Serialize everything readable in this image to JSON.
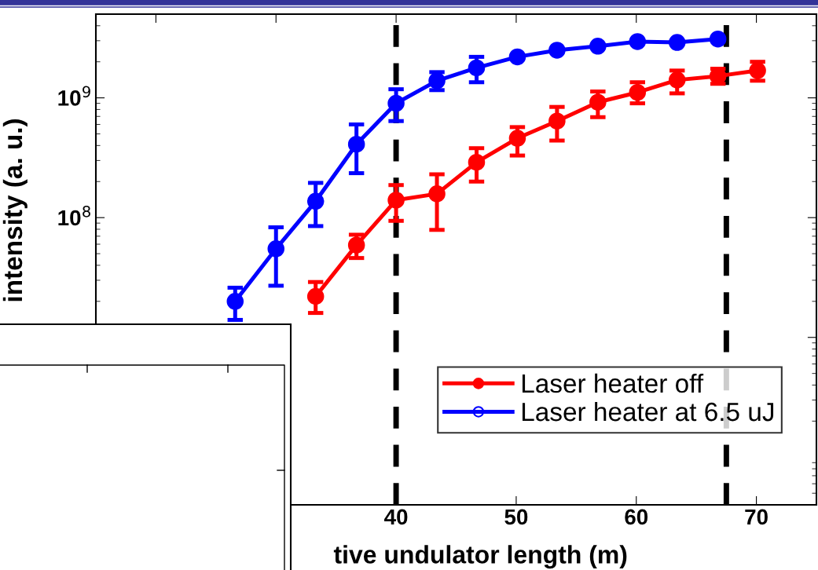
{
  "chart_data": {
    "type": "line",
    "xlabel": "tive undulator length (m)",
    "ylabel": "intensity (a. u.)",
    "x": [
      26.6,
      30.0,
      33.3,
      36.7,
      40.0,
      43.4,
      46.7,
      50.1,
      53.4,
      56.8,
      60.1,
      63.4,
      66.8,
      70.1
    ],
    "series": [
      {
        "name": "Laser heater off",
        "color": "#ff0000",
        "values": [
          null,
          null,
          22000000.0,
          59000000.0,
          140000000.0,
          158000000.0,
          290000000.0,
          460000000.0,
          640000000.0,
          920000000.0,
          1110000000.0,
          1410000000.0,
          1520000000.0,
          1690000000.0
        ],
        "errors": [
          null,
          null,
          [
            16000000.0,
            29000000.0
          ],
          [
            46000000.0,
            72000000.0
          ],
          [
            94000000.0,
            187000000.0
          ],
          [
            79000000.0,
            230000000.0
          ],
          [
            200000000.0,
            380000000.0
          ],
          [
            330000000.0,
            570000000.0
          ],
          [
            440000000.0,
            840000000.0
          ],
          [
            690000000.0,
            1130000000.0
          ],
          [
            900000000.0,
            1350000000.0
          ],
          [
            1090000000.0,
            1690000000.0
          ],
          [
            1310000000.0,
            1750000000.0
          ],
          [
            1390000000.0,
            2000000000.0
          ]
        ]
      },
      {
        "name": "Laser heater at 6.5 uJ",
        "color": "#0000ff",
        "values": [
          20000000.0,
          55000000.0,
          137000000.0,
          410000000.0,
          900000000.0,
          1390000000.0,
          1780000000.0,
          2200000000.0,
          2500000000.0,
          2700000000.0,
          2950000000.0,
          2900000000.0,
          3100000000.0,
          null
        ],
        "errors": [
          [
            14000000.0,
            26000000.0
          ],
          [
            27000000.0,
            83000000.0
          ],
          [
            85000000.0,
            195000000.0
          ],
          [
            235000000.0,
            600000000.0
          ],
          [
            640000000.0,
            1180000000.0
          ],
          [
            1160000000.0,
            1640000000.0
          ],
          [
            1350000000.0,
            2200000000.0
          ],
          null,
          null,
          null,
          null,
          null,
          null,
          null
        ]
      }
    ],
    "log": "y",
    "xlim": [
      15,
      75
    ],
    "ylim": [
      400000.0,
      5000000000.0
    ],
    "xticks": [
      {
        "value": 20,
        "label": null
      },
      {
        "value": 30,
        "label": null
      },
      40,
      50,
      60,
      70
    ],
    "yticks": [
      {
        "value": 10000000.0,
        "label": null
      },
      {
        "value": 100000000.0,
        "label": "10$^{8}$"
      },
      {
        "value": 1000000000.0,
        "label": "10$^{9}$"
      }
    ],
    "ref_lines": [
      {
        "axis": "x",
        "value": 40,
        "color": "#000000",
        "line_style": "dashed"
      },
      {
        "axis": "x",
        "value": 67.5,
        "color": "#000000",
        "line_style": "dashed"
      }
    ],
    "legend": "bottom right",
    "marker": "circle",
    "line_style": "solid",
    "grid": false
  }
}
